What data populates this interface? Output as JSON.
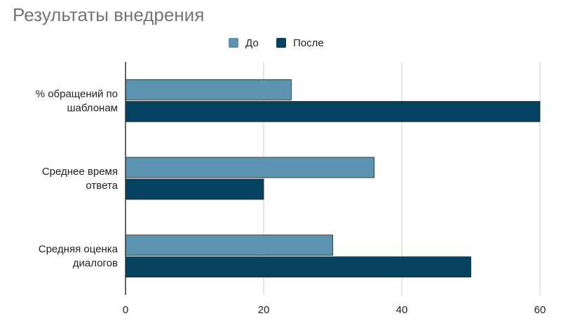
{
  "chart_data": {
    "type": "bar",
    "orientation": "horizontal",
    "title": "Результаты внедрения",
    "categories": [
      [
        "% обращений по",
        "шаблонам"
      ],
      [
        "Среднее время",
        "ответа"
      ],
      [
        "Средняя оценка",
        "диалогов"
      ]
    ],
    "series": [
      {
        "name": "До",
        "color": "#5b93b0",
        "values": [
          24,
          36,
          30
        ]
      },
      {
        "name": "После",
        "color": "#05425f",
        "values": [
          60,
          20,
          50
        ]
      }
    ],
    "xlim": [
      0,
      60
    ],
    "xticks": [
      0,
      20,
      40,
      60
    ],
    "grid": true,
    "legend": "top-center"
  }
}
